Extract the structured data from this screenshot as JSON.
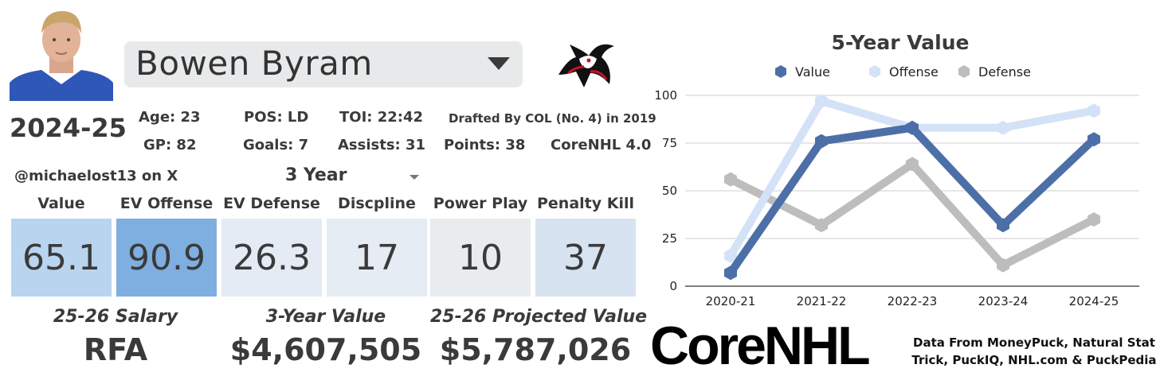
{
  "player": {
    "name": "Bowen Byram",
    "season": "2024-25",
    "stats_row1": {
      "age": "Age: 23",
      "pos": "POS: LD",
      "toi": "TOI: 22:42",
      "drafted": "Drafted By COL (No. 4) in 2019"
    },
    "stats_row2": {
      "gp": "GP: 82",
      "goals": "Goals: 7",
      "assists": "Assists: 31",
      "points": "Points: 38",
      "corenhl": "CoreNHL 4.0"
    },
    "handle": "@michaelost13 on X",
    "year_select": "3 Year"
  },
  "categories": [
    {
      "label": "Value",
      "value": "65.1",
      "color": "#b9d4ee"
    },
    {
      "label": "EV Offense",
      "value": "90.9",
      "color": "#7faee0"
    },
    {
      "label": "EV Defense",
      "value": "26.3",
      "color": "#e4ebf4"
    },
    {
      "label": "Discpline",
      "value": "17",
      "color": "#e6ecf3"
    },
    {
      "label": "Power Play",
      "value": "10",
      "color": "#e9ecef"
    },
    {
      "label": "Penalty Kill",
      "value": "37",
      "color": "#d8e3f1"
    }
  ],
  "footer": {
    "salary_label": "25-26 Salary",
    "salary_value": "RFA",
    "three_year_label": "3-Year Value",
    "three_year_value": "$4,607,505",
    "projected_label": "25-26 Projected Value",
    "projected_value": "$5,787,026"
  },
  "brand": "CoreNHL",
  "credits": "Data From MoneyPuck, Natural Stat Trick, PuckIQ, NHL.com & PuckPedia",
  "chart_data": {
    "type": "line",
    "title": "5-Year Value",
    "categories": [
      "2020-21",
      "2021-22",
      "2022-23",
      "2023-24",
      "2024-25"
    ],
    "series": [
      {
        "name": "Value",
        "values": [
          7,
          76,
          83,
          32,
          77
        ],
        "color": "#4c6fa8"
      },
      {
        "name": "Offense",
        "values": [
          16,
          97,
          83,
          83,
          92
        ],
        "color": "#d4e2f8"
      },
      {
        "name": "Defense",
        "values": [
          56,
          32,
          64,
          11,
          35
        ],
        "color": "#bdbdbd"
      }
    ],
    "ylim": [
      0,
      100
    ],
    "yticks": [
      0,
      25,
      50,
      75,
      100
    ],
    "grid": true,
    "legend": "top"
  }
}
